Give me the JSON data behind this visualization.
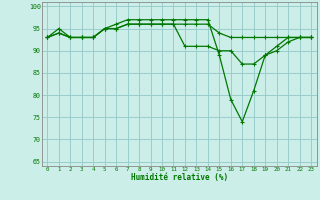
{
  "xlabel": "Humidité relative (%)",
  "background_color": "#cceee8",
  "grid_color": "#99cccc",
  "line_color": "#007700",
  "xlim": [
    -0.5,
    23.5
  ],
  "ylim": [
    64,
    101
  ],
  "yticks": [
    65,
    70,
    75,
    80,
    85,
    90,
    95,
    100
  ],
  "xticks": [
    0,
    1,
    2,
    3,
    4,
    5,
    6,
    7,
    8,
    9,
    10,
    11,
    12,
    13,
    14,
    15,
    16,
    17,
    18,
    19,
    20,
    21,
    22,
    23
  ],
  "series1": [
    93,
    94,
    93,
    93,
    93,
    95,
    95,
    96,
    96,
    96,
    96,
    96,
    96,
    96,
    96,
    94,
    93,
    93,
    93,
    93,
    93,
    93,
    93,
    93
  ],
  "series2": [
    93,
    95,
    93,
    93,
    93,
    95,
    96,
    97,
    97,
    97,
    97,
    97,
    97,
    97,
    97,
    89,
    79,
    74,
    81,
    89,
    91,
    93,
    93,
    93
  ],
  "series3": [
    93,
    94,
    93,
    93,
    93,
    95,
    95,
    96,
    96,
    96,
    96,
    96,
    91,
    91,
    91,
    90,
    90,
    87,
    87,
    89,
    90,
    92,
    93,
    93
  ]
}
